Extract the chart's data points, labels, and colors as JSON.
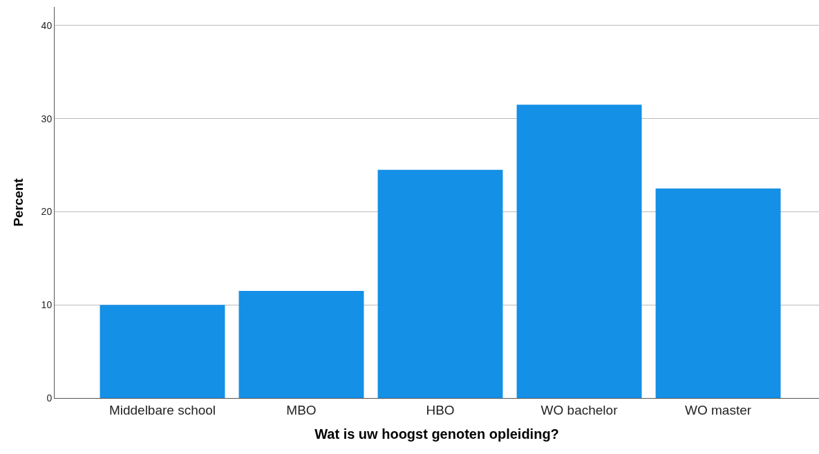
{
  "chart_data": {
    "type": "bar",
    "xlabel": "Wat is uw hoogst genoten opleiding?",
    "ylabel": "Percent",
    "categories": [
      "Middelbare school",
      "MBO",
      "HBO",
      "WO bachelor",
      "WO master"
    ],
    "values": [
      10,
      11.5,
      24.5,
      31.5,
      22.5
    ],
    "color": "#1490e6",
    "ylim": [
      0,
      42
    ],
    "yticks": [
      0,
      10,
      20,
      30,
      40
    ],
    "grid": "y"
  }
}
